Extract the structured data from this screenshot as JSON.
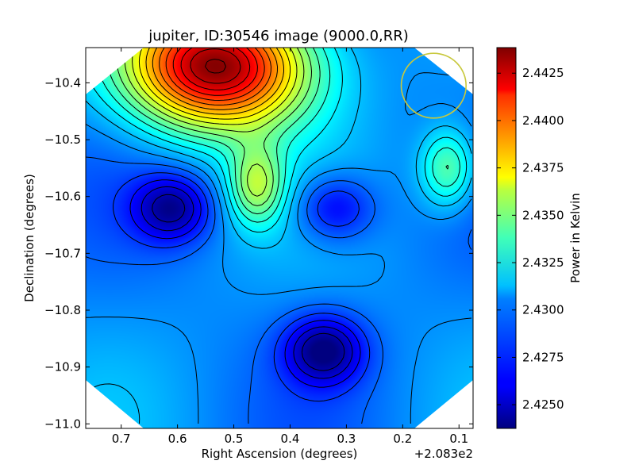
{
  "chart_data": {
    "type": "heatmap",
    "title": "jupiter, ID:30546 image (9000.0,RR)",
    "xlabel": "Right Ascension (degrees)",
    "ylabel": "Declination (degrees)",
    "x_offset_label": "+2.083e2",
    "x_ticks": [
      {
        "value": 0.7,
        "label": "0.7"
      },
      {
        "value": 0.6,
        "label": "0.6"
      },
      {
        "value": 0.5,
        "label": "0.5"
      },
      {
        "value": 0.4,
        "label": "0.4"
      },
      {
        "value": 0.3,
        "label": "0.3"
      },
      {
        "value": 0.2,
        "label": "0.2"
      },
      {
        "value": 0.1,
        "label": "0.1"
      }
    ],
    "y_ticks": [
      {
        "value": -10.4,
        "label": "−10.4"
      },
      {
        "value": -10.5,
        "label": "−10.5"
      },
      {
        "value": -10.6,
        "label": "−10.6"
      },
      {
        "value": -10.7,
        "label": "−10.7"
      },
      {
        "value": -10.8,
        "label": "−10.8"
      },
      {
        "value": -10.9,
        "label": "−10.9"
      },
      {
        "value": -11.0,
        "label": "−11.0"
      }
    ],
    "xlim": [
      0.763,
      0.075
    ],
    "ylim": [
      -11.008,
      -10.338
    ],
    "x_inverted": true,
    "colorbar": {
      "label": "Power in Kelvin",
      "range": [
        2.42375,
        2.44385
      ],
      "colormap": "jet",
      "ticks": [
        {
          "value": 2.425,
          "label": "2.4250"
        },
        {
          "value": 2.4275,
          "label": "2.4275"
        },
        {
          "value": 2.43,
          "label": "2.4300"
        },
        {
          "value": 2.4325,
          "label": "2.4325"
        },
        {
          "value": 2.435,
          "label": "2.4350"
        },
        {
          "value": 2.4375,
          "label": "2.4375"
        },
        {
          "value": 2.44,
          "label": "2.4400"
        },
        {
          "value": 2.4425,
          "label": "2.4425"
        }
      ]
    },
    "features": [
      {
        "kind": "maximum",
        "ra": 0.53,
        "dec": -10.37,
        "value": 2.4438
      },
      {
        "kind": "minimum",
        "ra": 0.61,
        "dec": -10.62,
        "value": 2.4245
      },
      {
        "kind": "minimum",
        "ra": 0.32,
        "dec": -10.62,
        "value": 2.4255
      },
      {
        "kind": "minimum",
        "ra": 0.34,
        "dec": -10.87,
        "value": 2.424
      },
      {
        "kind": "local-maximum",
        "ra": 0.46,
        "dec": -10.58,
        "value": 2.434
      },
      {
        "kind": "local-maximum",
        "ra": 0.12,
        "dec": -10.55,
        "value": 2.4335
      },
      {
        "kind": "background",
        "value": 2.429
      }
    ],
    "beam_marker": {
      "ra": 0.145,
      "dec": -10.405,
      "radius_deg": 0.057,
      "color": "#c8c83c"
    },
    "grid": false,
    "legend": "none",
    "colors": {
      "contour": "#000000",
      "beam": "#c8c83c",
      "background": "#ffffff"
    }
  }
}
